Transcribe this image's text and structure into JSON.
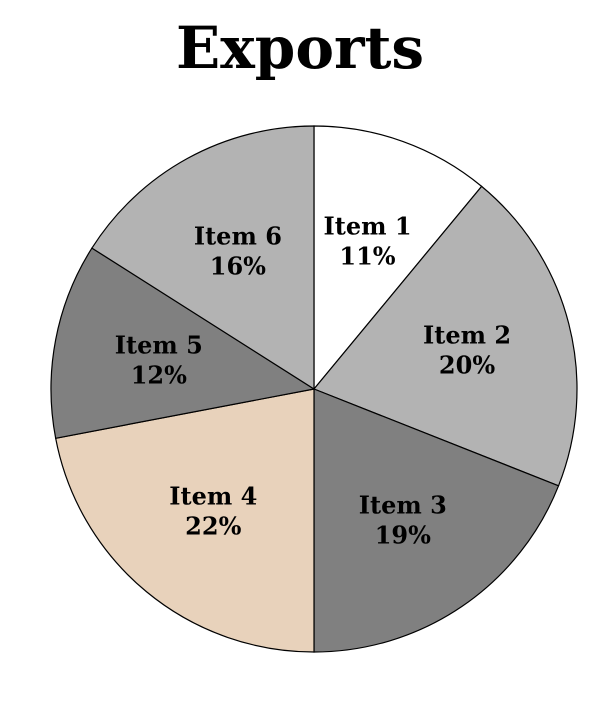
{
  "chart_data": {
    "type": "pie",
    "title": "Exports",
    "slices": [
      {
        "label": "Item 1",
        "value": 11,
        "value_label": "11%",
        "color": "#ffffff"
      },
      {
        "label": "Item 2",
        "value": 20,
        "value_label": "20%",
        "color": "#b3b3b3"
      },
      {
        "label": "Item 3",
        "value": 19,
        "value_label": "19%",
        "color": "#808080"
      },
      {
        "label": "Item 4",
        "value": 22,
        "value_label": "22%",
        "color": "#e8d2bb"
      },
      {
        "label": "Item 5",
        "value": 12,
        "value_label": "12%",
        "color": "#808080"
      },
      {
        "label": "Item 6",
        "value": 16,
        "value_label": "16%",
        "color": "#b3b3b3"
      }
    ],
    "start": "top",
    "direction": "clockwise",
    "legend": "none",
    "labels": "inside"
  }
}
